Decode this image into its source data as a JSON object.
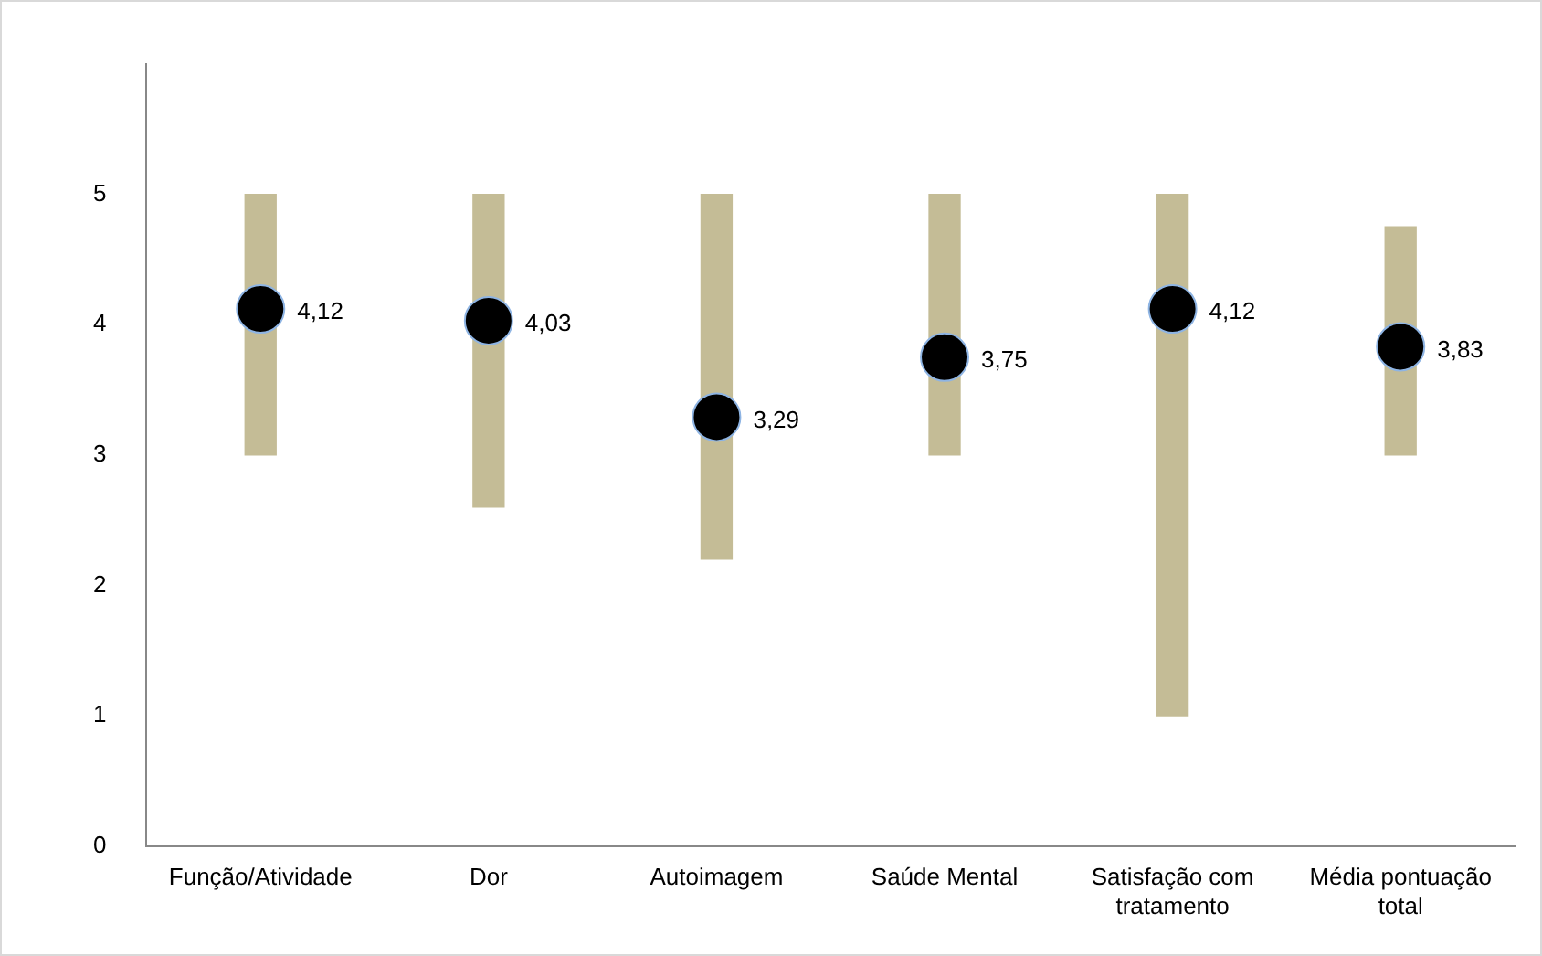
{
  "chart_data": {
    "type": "bar",
    "categories": [
      "Função/Atividade",
      "Dor",
      "Autoimagem",
      "Saúde Mental",
      "Satisfação com tratamento",
      "Média pontuação total"
    ],
    "ylim": [
      0,
      6
    ],
    "yticks": [
      0,
      1,
      2,
      3,
      4,
      5
    ],
    "grid": false,
    "legend": false,
    "series": [
      {
        "color": "#c4bc96",
        "base": [
          3,
          2.6,
          2.2,
          3,
          1,
          3
        ],
        "values": [
          2,
          2.4,
          2.8,
          2,
          4,
          1.75
        ]
      },
      {
        "type": "scatter",
        "color": "#000000",
        "marker": "circle",
        "x": [
          "Função/Atividade",
          "Dor",
          "Autoimagem",
          "Saúde Mental",
          "Satisfação com tratamento",
          "Média pontuação total"
        ],
        "values": [
          4.12,
          4.03,
          3.29,
          3.75,
          4.12,
          3.83
        ],
        "value_labels": [
          "4,12",
          "4,03",
          "3,29",
          "3,75",
          "4,12",
          "3,83"
        ]
      }
    ]
  }
}
